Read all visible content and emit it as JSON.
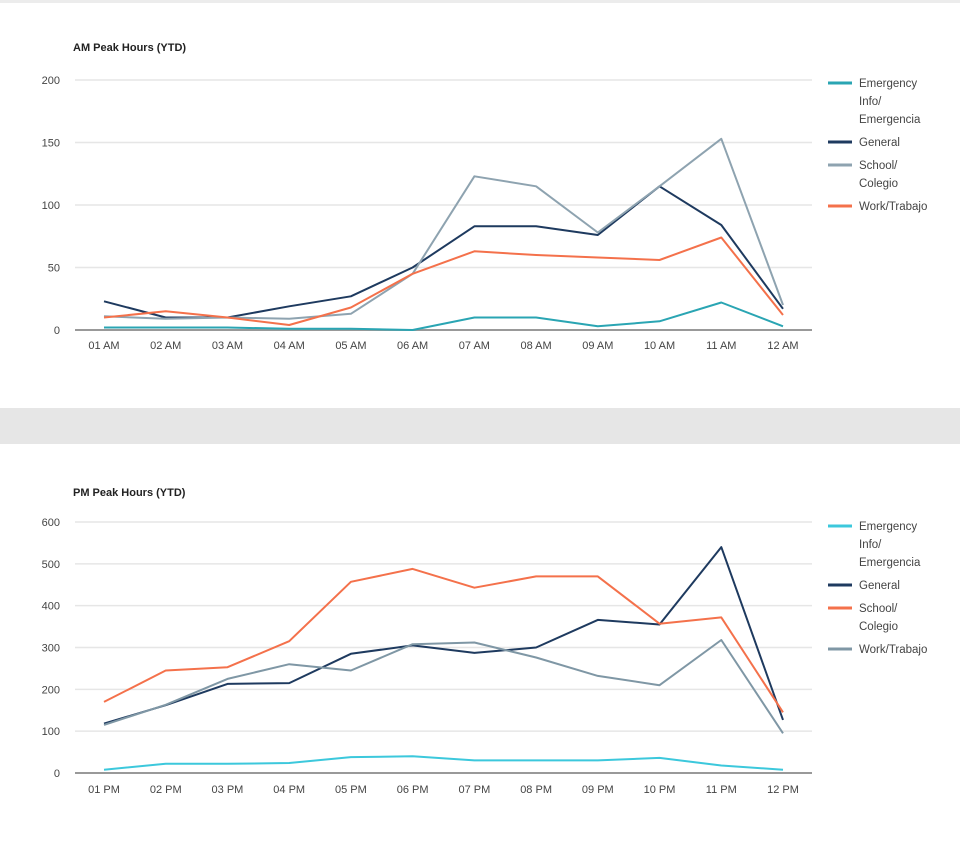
{
  "chart_data": [
    {
      "type": "line",
      "title": "AM Peak Hours (YTD)",
      "xlabel": "",
      "ylabel": "",
      "ylim": [
        0,
        200
      ],
      "yticks": [
        "0",
        "50",
        "100",
        "150",
        "200"
      ],
      "grid": true,
      "legend_position": "right",
      "categories": [
        "01 AM",
        "02 AM",
        "03 AM",
        "04 AM",
        "05 AM",
        "06 AM",
        "07 AM",
        "08 AM",
        "09 AM",
        "10 AM",
        "11 AM",
        "12 AM"
      ],
      "series": [
        {
          "name": "Emergency Info/ Emergencia",
          "legend_lines": [
            "Emergency",
            "Info/",
            "Emergencia"
          ],
          "color": "#2aa5b3",
          "values": [
            2,
            2,
            2,
            1,
            1,
            0,
            10,
            10,
            3,
            7,
            22,
            3
          ]
        },
        {
          "name": "General",
          "legend_lines": [
            "General"
          ],
          "color": "#1e3a5f",
          "values": [
            23,
            10,
            10,
            19,
            27,
            50,
            83,
            83,
            76,
            115,
            84,
            17
          ]
        },
        {
          "name": "School/ Colegio",
          "legend_lines": [
            "School/",
            "Colegio"
          ],
          "color": "#8ea3b0",
          "values": [
            11,
            9,
            10,
            9,
            13,
            45,
            123,
            115,
            78,
            115,
            153,
            20
          ]
        },
        {
          "name": "Work/Trabajo",
          "legend_lines": [
            "Work/Trabajo"
          ],
          "color": "#f4714b",
          "values": [
            10,
            15,
            10,
            4,
            18,
            45,
            63,
            60,
            58,
            56,
            74,
            12
          ]
        }
      ]
    },
    {
      "type": "line",
      "title": "PM Peak Hours (YTD)",
      "xlabel": "",
      "ylabel": "",
      "ylim": [
        0,
        600
      ],
      "yticks": [
        "0",
        "100",
        "200",
        "300",
        "400",
        "500",
        "600"
      ],
      "grid": true,
      "legend_position": "right",
      "categories": [
        "01 PM",
        "02 PM",
        "03 PM",
        "04 PM",
        "05 PM",
        "06 PM",
        "07 PM",
        "08 PM",
        "09 PM",
        "10 PM",
        "11 PM",
        "12 PM"
      ],
      "series": [
        {
          "name": "Emergency Info/ Emergencia",
          "legend_lines": [
            "Emergency",
            "Info/",
            "Emergencia"
          ],
          "color": "#3cc8dc",
          "values": [
            8,
            22,
            22,
            24,
            38,
            40,
            30,
            30,
            30,
            36,
            18,
            8
          ]
        },
        {
          "name": "General",
          "legend_lines": [
            "General"
          ],
          "color": "#1e3a5f",
          "values": [
            118,
            162,
            213,
            215,
            285,
            305,
            287,
            300,
            366,
            355,
            540,
            127
          ]
        },
        {
          "name": "School/ Colegio",
          "legend_lines": [
            "School/",
            "Colegio"
          ],
          "color": "#f4714b",
          "values": [
            170,
            245,
            253,
            315,
            457,
            488,
            443,
            470,
            470,
            357,
            372,
            145
          ]
        },
        {
          "name": "Work/Trabajo",
          "legend_lines": [
            "Work/Trabajo"
          ],
          "color": "#7f97a5",
          "values": [
            115,
            163,
            225,
            260,
            245,
            308,
            312,
            276,
            232,
            210,
            318,
            95
          ]
        }
      ]
    }
  ]
}
